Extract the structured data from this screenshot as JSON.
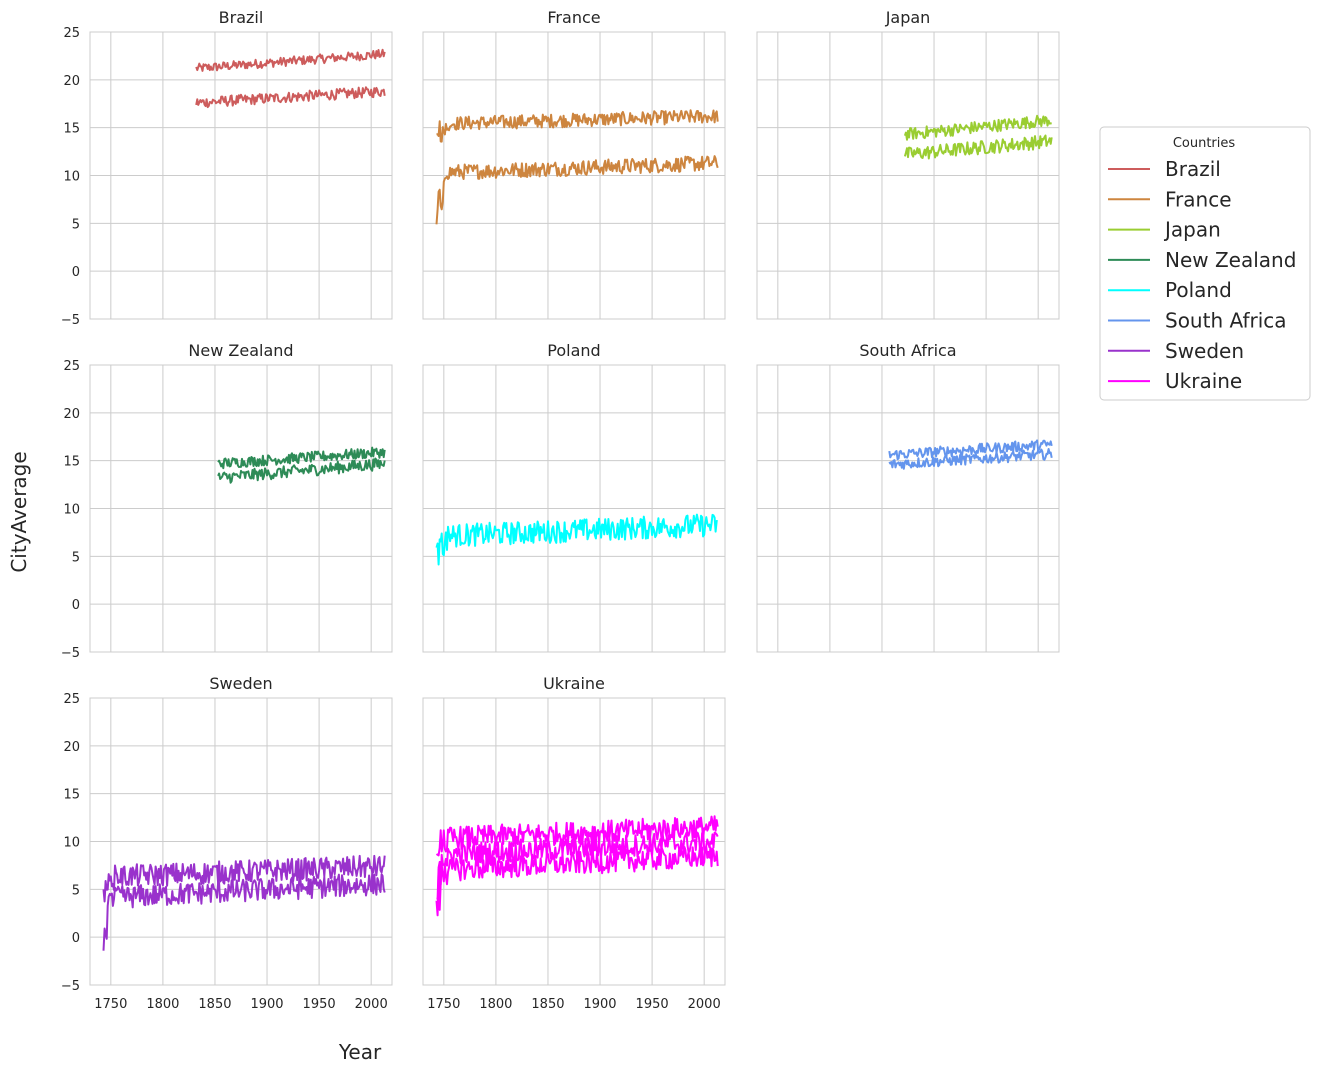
{
  "chart_data": {
    "type": "line",
    "layout": "facet-grid",
    "xlabel": "Year",
    "ylabel": "CityAverage",
    "xlim": [
      1730,
      2020
    ],
    "ylim": [
      -5,
      25
    ],
    "xticks": [
      1750,
      1800,
      1850,
      1900,
      1950,
      2000
    ],
    "yticks": [
      -5,
      0,
      5,
      10,
      15,
      20,
      25
    ],
    "grid": true,
    "legend": {
      "title": "Countries",
      "position": "right"
    },
    "panels": [
      {
        "title": "Brazil",
        "color": "#cd5c5c",
        "start": 1832,
        "end": 2013,
        "lines": [
          {
            "y_start": 21.2,
            "y_end": 22.7,
            "amp": 0.6
          },
          {
            "y_start": 17.6,
            "y_end": 18.8,
            "amp": 0.7
          }
        ]
      },
      {
        "title": "France",
        "color": "#cd853f",
        "start": 1743,
        "end": 2013,
        "lines": [
          {
            "y_start": 15.4,
            "y_end": 16.2,
            "amp": 0.9
          },
          {
            "y_start": 10.3,
            "y_end": 11.3,
            "amp": 1.0
          }
        ]
      },
      {
        "title": "Japan",
        "color": "#9acd32",
        "start": 1872,
        "end": 2013,
        "lines": [
          {
            "y_start": 14.3,
            "y_end": 15.8,
            "amp": 0.8
          },
          {
            "y_start": 12.2,
            "y_end": 13.6,
            "amp": 0.9
          }
        ]
      },
      {
        "title": "New Zealand",
        "color": "#2e8b57",
        "start": 1853,
        "end": 2013,
        "lines": [
          {
            "y_start": 14.7,
            "y_end": 15.9,
            "amp": 0.7
          },
          {
            "y_start": 13.2,
            "y_end": 14.7,
            "amp": 0.8
          }
        ]
      },
      {
        "title": "Poland",
        "color": "#00ffff",
        "start": 1743,
        "end": 2013,
        "lines": [
          {
            "y_start": 7.1,
            "y_end": 8.3,
            "amp": 1.5
          }
        ]
      },
      {
        "title": "South Africa",
        "color": "#6495ed",
        "start": 1857,
        "end": 2013,
        "lines": [
          {
            "y_start": 15.6,
            "y_end": 16.7,
            "amp": 0.7
          },
          {
            "y_start": 14.6,
            "y_end": 15.7,
            "amp": 0.7
          }
        ]
      },
      {
        "title": "Sweden",
        "color": "#9932cc",
        "start": 1743,
        "end": 2013,
        "lines": [
          {
            "y_start": 6.3,
            "y_end": 7.4,
            "amp": 1.5
          },
          {
            "y_start": 4.1,
            "y_end": 5.6,
            "amp": 1.5
          }
        ]
      },
      {
        "title": "Ukraine",
        "color": "#ff00ff",
        "start": 1743,
        "end": 2013,
        "lines": [
          {
            "y_start": 10.3,
            "y_end": 11.5,
            "amp": 1.5
          },
          {
            "y_start": 8.6,
            "y_end": 10.0,
            "amp": 1.5
          },
          {
            "y_start": 7.0,
            "y_end": 8.5,
            "amp": 1.5
          }
        ]
      }
    ]
  }
}
